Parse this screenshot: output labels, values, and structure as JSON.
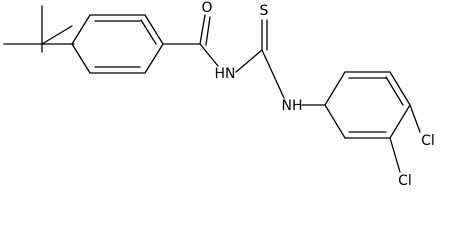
{
  "atoms": [
    "O",
    "S",
    "HN",
    "NH",
    "Cl",
    "Cl"
  ]
}
